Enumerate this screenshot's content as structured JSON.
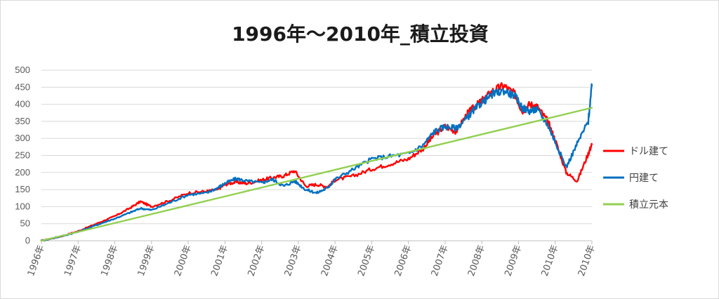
{
  "chart_data": {
    "type": "line",
    "title": "1996年～2010年_積立投資",
    "xlabel": "",
    "ylabel": "",
    "ylim": [
      0,
      500
    ],
    "yticks": [
      0,
      50,
      100,
      150,
      200,
      250,
      300,
      350,
      400,
      450,
      500
    ],
    "xticks": [
      "1996年",
      "1997年",
      "1998年",
      "1999年",
      "2000年",
      "2001年",
      "2002年",
      "2003年",
      "2004年",
      "2005年",
      "2006年",
      "2007年",
      "2008年",
      "2009年",
      "2010年",
      "2010年"
    ],
    "xlim": [
      1996.0,
      2011.0
    ],
    "grid": "horizontal",
    "legend_position": "right",
    "series": [
      {
        "name": "ドル建て",
        "color": "#ff0000",
        "x": [
          1996.0,
          1996.5,
          1997.0,
          1997.5,
          1998.0,
          1998.4,
          1998.7,
          1999.0,
          1999.5,
          2000.0,
          2000.5,
          2000.8,
          2001.0,
          2001.3,
          2001.6,
          2002.0,
          2002.3,
          2002.6,
          2002.9,
          2003.2,
          2003.5,
          2003.8,
          2004.0,
          2004.5,
          2005.0,
          2005.5,
          2006.0,
          2006.4,
          2006.7,
          2007.0,
          2007.3,
          2007.6,
          2007.8,
          2008.0,
          2008.3,
          2008.6,
          2008.9,
          2009.1,
          2009.3,
          2009.5,
          2009.8,
          2010.0,
          2010.3,
          2010.6,
          2010.9,
          2011.0
        ],
        "y": [
          0,
          12,
          28,
          50,
          72,
          95,
          115,
          100,
          118,
          140,
          145,
          150,
          165,
          172,
          168,
          178,
          185,
          190,
          205,
          160,
          165,
          158,
          178,
          190,
          210,
          225,
          240,
          270,
          310,
          335,
          320,
          372,
          392,
          410,
          440,
          455,
          430,
          380,
          400,
          395,
          350,
          295,
          200,
          175,
          255,
          283
        ]
      },
      {
        "name": "円建て",
        "color": "#0070c0",
        "x": [
          1996.0,
          1996.5,
          1997.0,
          1997.5,
          1998.0,
          1998.4,
          1998.7,
          1999.0,
          1999.5,
          2000.0,
          2000.5,
          2000.8,
          2001.0,
          2001.3,
          2001.6,
          2002.0,
          2002.3,
          2002.6,
          2002.9,
          2003.2,
          2003.5,
          2003.8,
          2004.0,
          2004.5,
          2005.0,
          2005.5,
          2006.0,
          2006.4,
          2006.7,
          2007.0,
          2007.3,
          2007.6,
          2007.8,
          2008.0,
          2008.3,
          2008.6,
          2008.9,
          2009.1,
          2009.3,
          2009.5,
          2009.8,
          2010.0,
          2010.3,
          2010.6,
          2010.9,
          2011.0
        ],
        "y": [
          0,
          12,
          26,
          46,
          65,
          82,
          95,
          90,
          112,
          135,
          140,
          155,
          168,
          182,
          175,
          170,
          180,
          160,
          175,
          150,
          140,
          155,
          180,
          210,
          240,
          248,
          255,
          280,
          320,
          335,
          330,
          360,
          385,
          405,
          430,
          440,
          425,
          390,
          380,
          385,
          340,
          290,
          215,
          285,
          350,
          455
        ]
      },
      {
        "name": "積立元本",
        "color": "#92d050",
        "x": [
          1996.0,
          2011.0
        ],
        "y": [
          0,
          390
        ]
      }
    ]
  }
}
